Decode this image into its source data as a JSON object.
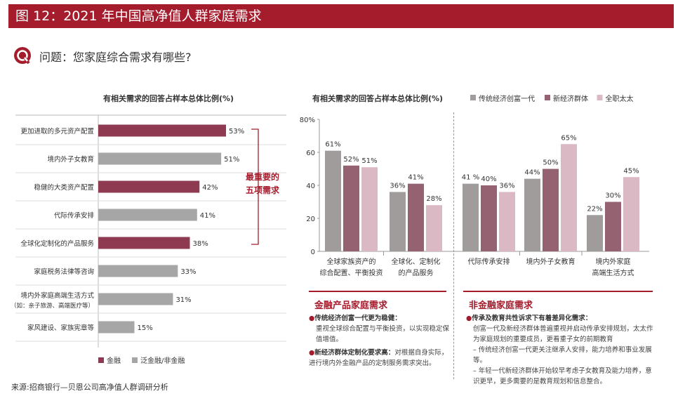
{
  "page": {
    "title": "图 12：2021 年中国高净值人群家庭需求",
    "question": "问题：您家庭综合需求有哪些?",
    "source": "来源:招商银行—贝恩公司高净值人群调研分析"
  },
  "colors": {
    "brand": "#a51d2d",
    "finance": "#8e3b52",
    "non_finance": "#a6a6a6",
    "traditional": "#a09c9c",
    "new_economy": "#946271",
    "housewife": "#dbb9c4"
  },
  "left_panel": {
    "bracket_label_line1": "最重要的",
    "bracket_label_line2": "五项需求",
    "legend": [
      {
        "label": "金融",
        "color": "#8e3b52"
      },
      {
        "label": "泛金融/非金融",
        "color": "#a6a6a6"
      }
    ]
  },
  "right_panel": {
    "finance_title": "金融产品家庭需求",
    "nonfinance_title": "非金融家庭需求",
    "finance_bullets": [
      {
        "head": "传统经济创富一代更为稳健：",
        "body": "重视全球综合配置与平衡投资，以实现稳定保值增值。"
      },
      {
        "head": "新经济群体定制化要求高：",
        "body": "对根据自身实际，进行境内外金融产品的定制服务需求突出。"
      }
    ],
    "nonfinance_head": "传承及教育共性诉求下有着差异化需求：",
    "nonfinance_body": "创富一代及新经济群体普遍重视并启动传承安排规划，太太作为家庭规划的重要成员，更看重子女的前期教育",
    "nonfinance_sub": [
      "– 传统经济创富一代更关注继承人安排，能力培养和事业发展等。",
      "– 年轻一代新经济群体开始较早考虑子女教育及能力培养，意识更早，更多需要的是教育规划和信息整合。"
    ]
  },
  "chart_data": [
    {
      "type": "bar",
      "orientation": "horizontal",
      "title": "有相关需求的回答占样本总体比例(%)",
      "categories": [
        "更加进取的多元资产配置",
        "境内外子女教育",
        "稳健的大类资产配置",
        "代际传承安排",
        "全球化定制化的产品服务",
        "家庭税务法律等咨询",
        "境内外家庭高端生活方式",
        "家风建设、家族宪章等"
      ],
      "category_notes": [
        "",
        "",
        "",
        "",
        "",
        "",
        "（如：亲子旅游、高端医疗等）",
        ""
      ],
      "values": [
        53,
        51,
        42,
        41,
        38,
        33,
        31,
        15
      ],
      "value_labels": [
        "53%",
        "51%",
        "42%",
        "41%",
        "38%",
        "33%",
        "31%",
        "15%"
      ],
      "group": [
        "金融",
        "泛金融/非金融",
        "金融",
        "泛金融/非金融",
        "金融",
        "泛金融/非金融",
        "泛金融/非金融",
        "泛金融/非金融"
      ],
      "xlim": [
        0,
        60
      ]
    },
    {
      "type": "bar",
      "title": "有相关需求的回答占样本总体比例(%)",
      "categories": [
        [
          "全球家族资产的",
          "综合配置、平衡投资"
        ],
        [
          "全球化、定制化",
          "的产品服务"
        ],
        [
          "代际传承安排"
        ],
        [
          "境内外子女教育"
        ],
        [
          "境内外家庭",
          "高端生活方式"
        ]
      ],
      "series": [
        {
          "name": "传统经济创富一代",
          "values": [
            61,
            36,
            41,
            44,
            22
          ],
          "labels": [
            "61%",
            "36%",
            "41 %",
            "44%",
            "22%"
          ],
          "color": "#a09c9c"
        },
        {
          "name": "新经济群体",
          "values": [
            52,
            41,
            40,
            50,
            30
          ],
          "labels": [
            "52%",
            "41%",
            "40%",
            "50%",
            "30%"
          ],
          "color": "#946271"
        },
        {
          "name": "全职太太",
          "values": [
            51,
            28,
            36,
            65,
            45
          ],
          "labels": [
            "51%",
            "28%",
            "36%",
            "65%",
            "45%"
          ],
          "color": "#dbb9c4"
        }
      ],
      "yticks": [
        "80%",
        "60",
        "40",
        "20",
        "0"
      ],
      "ylim": [
        0,
        80
      ]
    }
  ]
}
